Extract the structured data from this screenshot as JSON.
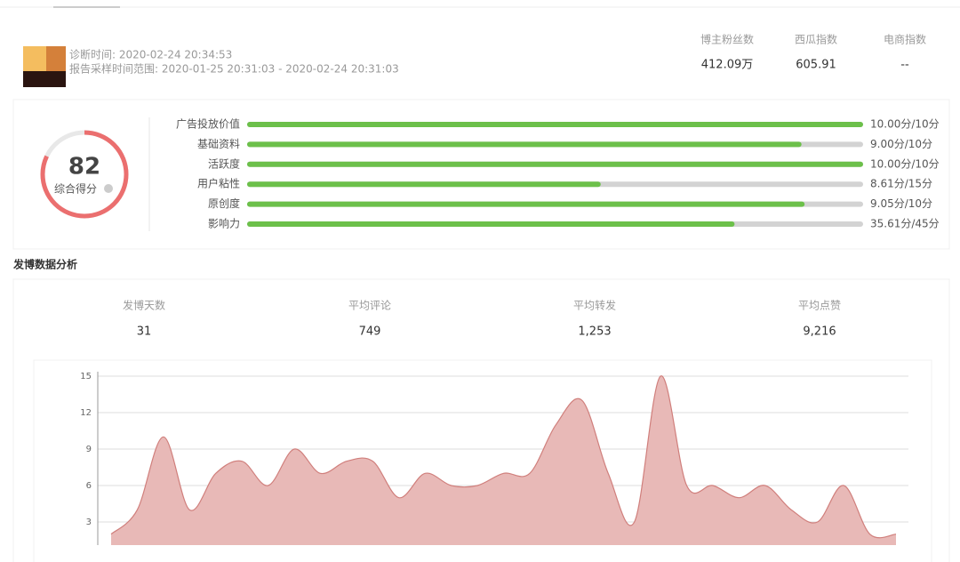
{
  "profile": {
    "diagnosis_time": "诊断时间: 2020-02-24 20:34:53",
    "sample_range": "报告采样时间范围: 2020-01-25 20:31:03 - 2020-02-24 20:31:03",
    "stats": [
      {
        "label": "博主粉丝数",
        "value": "412.09万"
      },
      {
        "label": "西瓜指数",
        "value": "605.91"
      },
      {
        "label": "电商指数",
        "value": "--"
      }
    ]
  },
  "score": {
    "value": 82,
    "label": "综合得分",
    "items": [
      {
        "name": "广告投放价值",
        "value": 10.0,
        "max": 10,
        "value_label": "10.00分/10分"
      },
      {
        "name": "基础资料",
        "value": 9.0,
        "max": 10,
        "value_label": "9.00分/10分"
      },
      {
        "name": "活跃度",
        "value": 10.0,
        "max": 10,
        "value_label": "10.00分/10分"
      },
      {
        "name": "用户粘性",
        "value": 8.61,
        "max": 15,
        "value_label": "8.61分/15分"
      },
      {
        "name": "原创度",
        "value": 9.05,
        "max": 10,
        "value_label": "9.05分/10分"
      },
      {
        "name": "影响力",
        "value": 35.61,
        "max": 45,
        "value_label": "35.61分/45分"
      }
    ]
  },
  "posting": {
    "title": "发博数据分析",
    "stats": [
      {
        "label": "发博天数",
        "value": "31"
      },
      {
        "label": "平均评论",
        "value": "749"
      },
      {
        "label": "平均转发",
        "value": "1,253"
      },
      {
        "label": "平均点赞",
        "value": "9,216"
      }
    ]
  },
  "chart_data": {
    "type": "area",
    "color": "#e8b9b7",
    "line_color": "#d07f7c",
    "categories": [
      null,
      null,
      null,
      null,
      null,
      null,
      null,
      null,
      null,
      null,
      null,
      null,
      null,
      null,
      null,
      null,
      null,
      null,
      null,
      null,
      null,
      null,
      null,
      null,
      null,
      null,
      null,
      null,
      null,
      null,
      null
    ],
    "values": [
      2,
      4,
      10,
      4,
      7,
      8,
      6,
      9,
      7,
      8,
      8,
      5,
      7,
      6,
      6,
      7,
      7,
      11,
      13,
      7,
      3,
      15,
      6,
      6,
      5,
      6,
      4,
      3,
      6,
      2,
      2
    ],
    "ylim": [
      0,
      15
    ],
    "yticks": [
      3,
      6,
      9,
      12,
      15
    ],
    "grid": true
  }
}
